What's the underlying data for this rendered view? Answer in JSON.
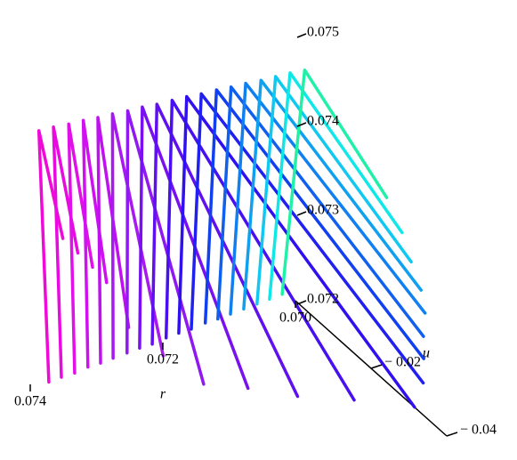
{
  "chart_data": {
    "type": "line3d",
    "xlabel": "r",
    "ylabel": "u",
    "xlim": [
      0.07,
      0.074
    ],
    "ylim": [
      -0.04,
      0
    ],
    "zlim": [
      0.072,
      0.075
    ],
    "xticks": [
      {
        "value": 0.07,
        "label": "0.070"
      },
      0.072,
      0.074
    ],
    "yticks": [
      {
        "value": -0.02,
        "label": "− 0.02"
      },
      {
        "value": -0.04,
        "label": "− 0.04"
      }
    ],
    "zticks": [
      0.072,
      0.073,
      0.074,
      0.075
    ],
    "series": [
      {
        "color": "#f00ad8",
        "x": [
          0.07372,
          0.07387,
          0.07387
        ],
        "y": [
          0,
          0,
          -0.00635
        ],
        "z": [
          0.07196,
          0.07482,
          0.07385
        ]
      },
      {
        "color": "#e80ae0",
        "x": [
          0.07353,
          0.07365,
          0.07365
        ],
        "y": [
          0,
          0,
          -0.00645
        ],
        "z": [
          0.07197,
          0.07481,
          0.07364
        ]
      },
      {
        "color": "#e010e8",
        "x": [
          0.07333,
          0.07342,
          0.07342
        ],
        "y": [
          0,
          0,
          -0.00631
        ],
        "z": [
          0.07197,
          0.07479,
          0.07342
        ]
      },
      {
        "color": "#d010f0",
        "x": [
          0.07313,
          0.0732,
          0.0732
        ],
        "y": [
          0,
          0,
          -0.00616
        ],
        "z": [
          0.07199,
          0.07478,
          0.07319
        ]
      },
      {
        "color": "#c010f0",
        "x": [
          0.07294,
          0.07298,
          0.07298
        ],
        "y": [
          0,
          0,
          -0.00814
        ],
        "z": [
          0.07199,
          0.07476,
          0.07271
        ]
      },
      {
        "color": "#a818f0",
        "x": [
          0.07275,
          0.07276,
          0.07276
        ],
        "y": [
          0,
          0,
          -0.01341
        ],
        "z": [
          0.072,
          0.07475,
          0.07254
        ]
      },
      {
        "color": "#9018f0",
        "x": [
          0.07254,
          0.07253,
          0.07253
        ],
        "y": [
          0,
          0,
          -0.02009
        ],
        "z": [
          0.07201,
          0.07473,
          0.07242
        ]
      },
      {
        "color": "#7810f0",
        "x": [
          0.07235,
          0.07231,
          0.07231
        ],
        "y": [
          0,
          0,
          -0.02795
        ],
        "z": [
          0.07202,
          0.07472,
          0.07262
        ]
      },
      {
        "color": "#6010f0",
        "x": [
          0.07216,
          0.07209,
          0.07209
        ],
        "y": [
          0,
          0,
          -0.03722
        ],
        "z": [
          0.07202,
          0.0747,
          0.07283
        ]
      },
      {
        "color": "#4810f0",
        "x": [
          0.07195,
          0.07186,
          0.07186
        ],
        "y": [
          0,
          0,
          -0.04814
        ],
        "z": [
          0.07204,
          0.07469,
          0.07315
        ]
      },
      {
        "color": "#3010f0",
        "x": [
          0.07176,
          0.07164,
          0.07164
        ],
        "y": [
          0,
          0,
          -0.06024
        ],
        "z": [
          0.07205,
          0.07468,
          0.07348
        ]
      },
      {
        "color": "#2020f0",
        "x": [
          0.07157,
          0.07142,
          0.07142
        ],
        "y": [
          0,
          0,
          -0.05868
        ],
        "z": [
          0.07205,
          0.07466,
          0.07364
        ]
      },
      {
        "color": "#1040f0",
        "x": [
          0.07136,
          0.07119,
          0.07119
        ],
        "y": [
          0,
          0,
          -0.05478
        ],
        "z": [
          0.07207,
          0.07465,
          0.07371
        ]
      },
      {
        "color": "#1060f0",
        "x": [
          0.07117,
          0.07097,
          0.07097
        ],
        "y": [
          0,
          0,
          -0.05087
        ],
        "z": [
          0.07207,
          0.07463,
          0.07376
        ]
      },
      {
        "color": "#1080f0",
        "x": [
          0.07098,
          0.07075,
          0.07075
        ],
        "y": [
          0,
          0,
          -0.04744
        ],
        "z": [
          0.07208,
          0.07462,
          0.07384
        ]
      },
      {
        "color": "#10a0f0",
        "x": [
          0.07078,
          0.07052,
          0.07052
        ],
        "y": [
          0,
          0,
          -0.04235
        ],
        "z": [
          0.07209,
          0.0746,
          0.07385
        ]
      },
      {
        "color": "#10c8f0",
        "x": [
          0.07058,
          0.0703,
          0.0703
        ],
        "y": [
          0,
          0,
          -0.03586
        ],
        "z": [
          0.0721,
          0.07459,
          0.07387
        ]
      },
      {
        "color": "#10e8e8",
        "x": [
          0.07039,
          0.07008,
          0.07008
        ],
        "y": [
          0,
          0,
          -0.0296
        ],
        "z": [
          0.07211,
          0.07458,
          0.07391
        ]
      },
      {
        "color": "#20f0a8",
        "x": [
          0.0702,
          0.06986,
          0.06986
        ],
        "y": [
          0,
          0,
          -0.02169
        ],
        "z": [
          0.07212,
          0.07456,
          0.07395
        ]
      }
    ]
  }
}
